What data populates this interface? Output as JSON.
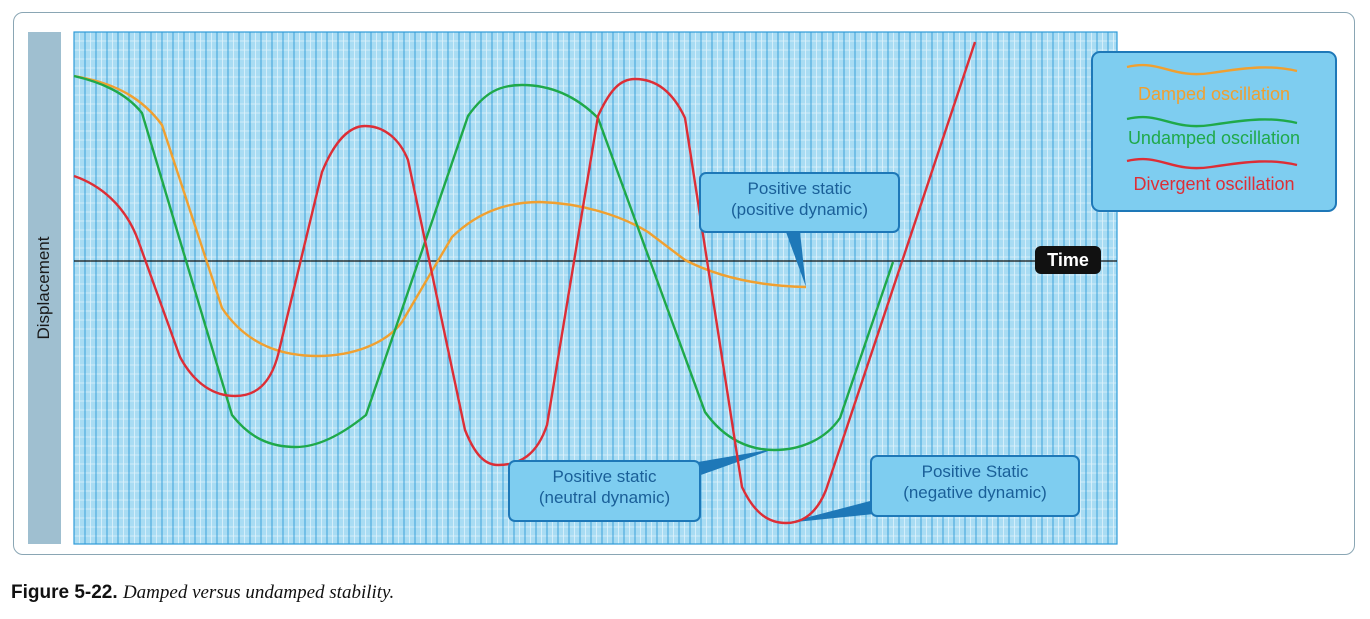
{
  "axis": {
    "y_label": "Displacement",
    "x_label": "Time"
  },
  "callouts": {
    "damped": {
      "line1": "Positive static",
      "line2": "(positive dynamic)"
    },
    "undamped": {
      "line1": "Positive static",
      "line2": "(neutral dynamic)"
    },
    "divergent": {
      "line1": "Positive Static",
      "line2": "(negative dynamic)"
    }
  },
  "legend": {
    "items": [
      {
        "label": "Damped oscillation",
        "color": "#f0a030"
      },
      {
        "label": "Undamped oscillation",
        "color": "#1fa94a"
      },
      {
        "label": "Divergent oscillation",
        "color": "#dd2e36"
      }
    ]
  },
  "caption": {
    "number": "Figure 5-22.",
    "text": "Damped versus undamped stability."
  },
  "colors": {
    "grid_background": "#a9dcf3",
    "grid_major": "#2f9bd8",
    "grid_minor": "#dff3fc",
    "damped": "#f0a030",
    "undamped": "#1fa94a",
    "divergent": "#dd2e36"
  }
}
